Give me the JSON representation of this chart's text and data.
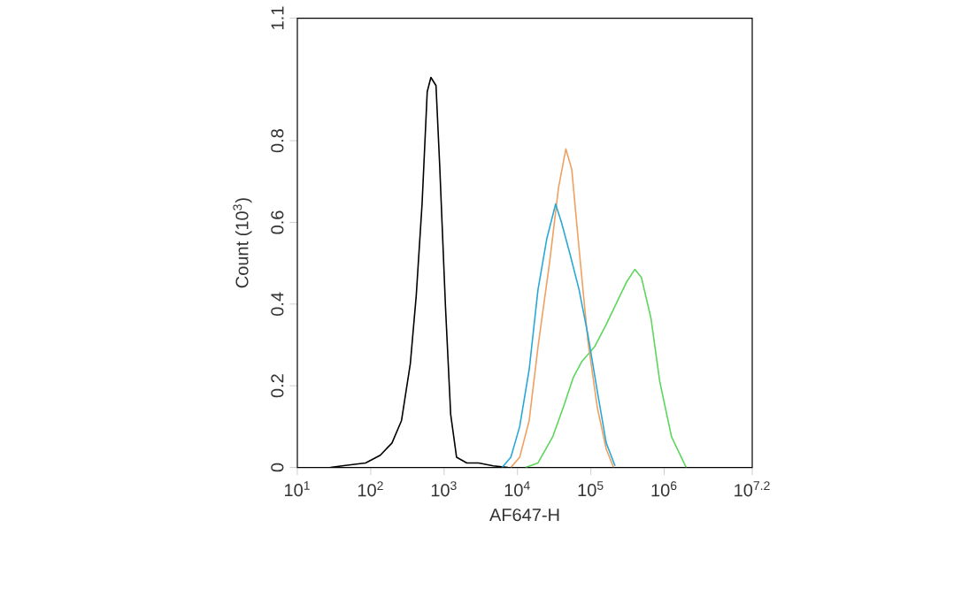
{
  "chart_data": {
    "type": "line",
    "xlabel": "AF647-H",
    "ylabel": "Count (10$^{3}$)",
    "log": "x",
    "xlim": [
      10,
      15848932
    ],
    "ylim": [
      0,
      1.1
    ],
    "xticks": [
      {
        "value": 10,
        "label": "10$^{1}$"
      },
      {
        "value": 100,
        "label": "10$^{2}$"
      },
      {
        "value": 1000,
        "label": "10$^{3}$"
      },
      {
        "value": 10000,
        "label": "10$^{4}$"
      },
      {
        "value": 100000,
        "label": "10$^{5}$"
      },
      {
        "value": 1000000,
        "label": "10$^{6}$"
      },
      {
        "value": 15848932,
        "label": "10$^{7.2}$"
      }
    ],
    "yticks": [
      0,
      0.2,
      0.4,
      0.6,
      0.8,
      1.1
    ],
    "series": [
      {
        "color": "#000000",
        "x": [
          28.2,
          40.7,
          85.1,
          135,
          195,
          263,
          347,
          417,
          501,
          589,
          661,
          776,
          871,
          1047,
          1230,
          1479,
          2042,
          2951,
          4677,
          7413
        ],
        "values": [
          0,
          0.004,
          0.011,
          0.03,
          0.06,
          0.115,
          0.255,
          0.42,
          0.645,
          0.92,
          0.955,
          0.935,
          0.74,
          0.39,
          0.13,
          0.025,
          0.011,
          0.011,
          0.004,
          0
        ]
      },
      {
        "color": "#5cd65c",
        "x": [
          12880,
          19050,
          30200,
          43650,
          57540,
          75860,
          112200,
          162200,
          234400,
          309000,
          398100,
          489800,
          660700,
          871000,
          1259000,
          1995000
        ],
        "values": [
          0,
          0.011,
          0.075,
          0.155,
          0.22,
          0.26,
          0.295,
          0.35,
          0.41,
          0.455,
          0.485,
          0.465,
          0.365,
          0.21,
          0.075,
          0
        ]
      },
      {
        "color": "#f0a060",
        "x": [
          8128,
          10720,
          14450,
          19050,
          27540,
          36310,
          45710,
          54950,
          69180,
          91200,
          123000,
          162200,
          204200
        ],
        "values": [
          0,
          0.025,
          0.115,
          0.295,
          0.505,
          0.685,
          0.78,
          0.73,
          0.535,
          0.31,
          0.145,
          0.045,
          0
        ]
      },
      {
        "color": "#29a8d8",
        "x": [
          6166,
          8128,
          10720,
          14450,
          19050,
          25120,
          33110,
          39810,
          52480,
          69180,
          91200,
          123000,
          162200,
          213800
        ],
        "values": [
          0,
          0.025,
          0.1,
          0.24,
          0.435,
          0.56,
          0.645,
          0.6,
          0.52,
          0.435,
          0.325,
          0.185,
          0.06,
          0.004
        ]
      }
    ]
  }
}
